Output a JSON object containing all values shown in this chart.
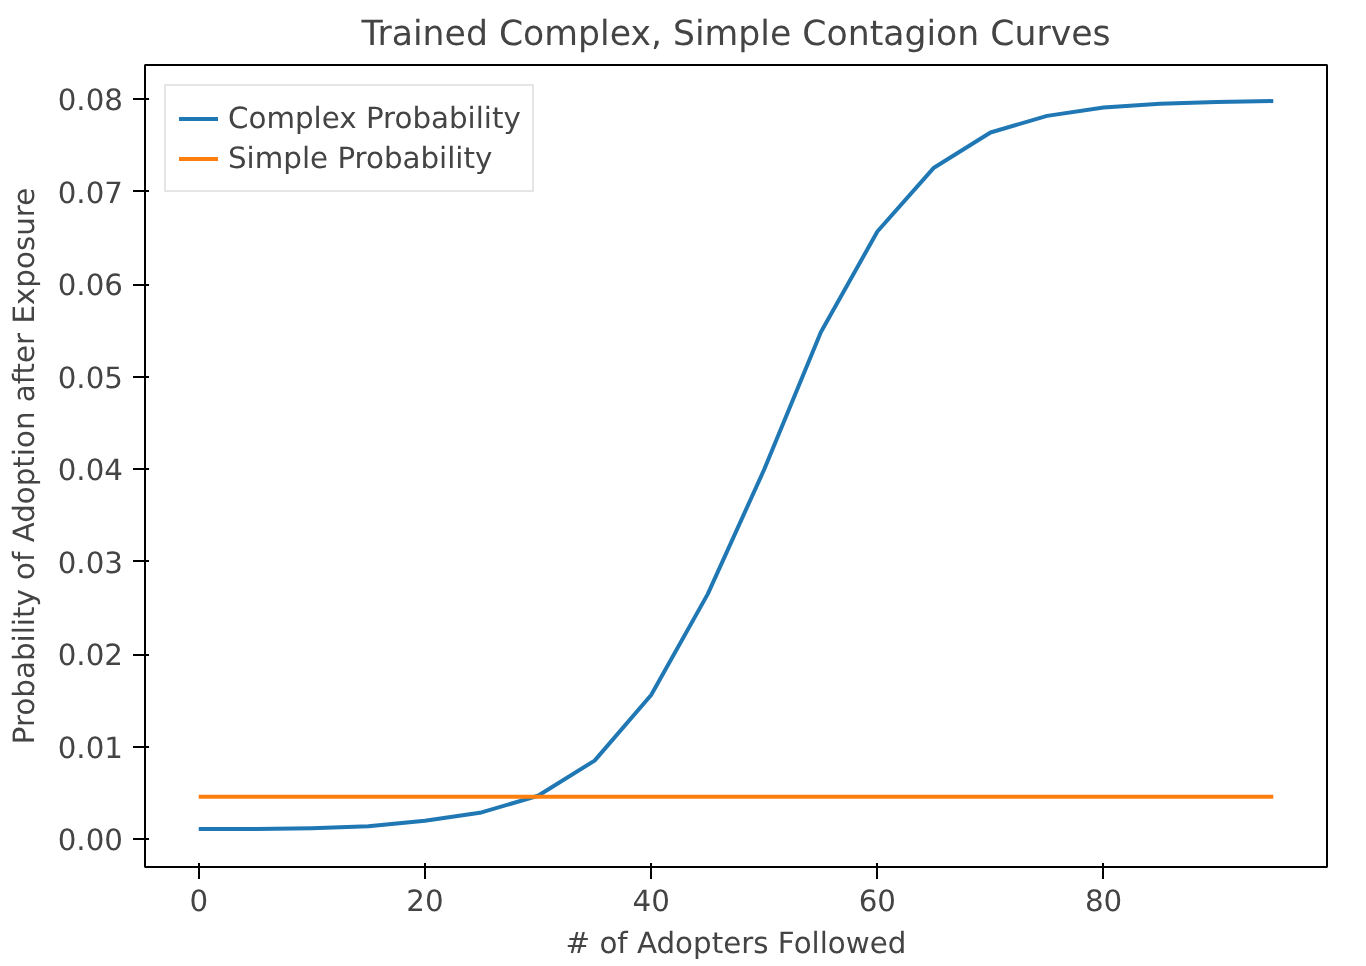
{
  "chart_data": {
    "type": "line",
    "title": "Trained Complex, Simple Contagion Curves",
    "xlabel": "# of Adopters Followed",
    "ylabel": "Probability of Adoption after Exposure",
    "x": [
      0,
      5,
      10,
      15,
      20,
      25,
      30,
      35,
      40,
      45,
      50,
      55,
      60,
      65,
      70,
      75,
      80,
      85,
      90,
      95
    ],
    "series": [
      {
        "name": "Complex Probability",
        "color": "#1f77b4",
        "values": [
          0.0011,
          0.0011,
          0.0012,
          0.0014,
          0.002,
          0.0029,
          0.0047,
          0.0085,
          0.0156,
          0.0265,
          0.04,
          0.0548,
          0.0657,
          0.0726,
          0.0764,
          0.0782,
          0.0791,
          0.0795,
          0.0797,
          0.0798
        ]
      },
      {
        "name": "Simple Probability",
        "color": "#ff7f0e",
        "values": [
          0.0046,
          0.0046,
          0.0046,
          0.0046,
          0.0046,
          0.0046,
          0.0046,
          0.0046,
          0.0046,
          0.0046,
          0.0046,
          0.0046,
          0.0046,
          0.0046,
          0.0046,
          0.0046,
          0.0046,
          0.0046,
          0.0046,
          0.0046
        ]
      }
    ],
    "xlim": [
      -4.75,
      99.75
    ],
    "xticks": [
      0,
      20,
      40,
      60,
      80
    ],
    "ylim": [
      -0.003,
      0.0837
    ],
    "yticks": [
      {
        "value": 0,
        "label": "0.00"
      },
      {
        "value": 0.01,
        "label": "0.01"
      },
      {
        "value": 0.02,
        "label": "0.02"
      },
      {
        "value": 0.03,
        "label": "0.03"
      },
      {
        "value": 0.04,
        "label": "0.04"
      },
      {
        "value": 0.05,
        "label": "0.05"
      },
      {
        "value": 0.06,
        "label": "0.06"
      },
      {
        "value": 0.07,
        "label": "0.07"
      },
      {
        "value": 0.08,
        "label": "0.08"
      }
    ],
    "legend": "top left",
    "line_style": "solid"
  }
}
